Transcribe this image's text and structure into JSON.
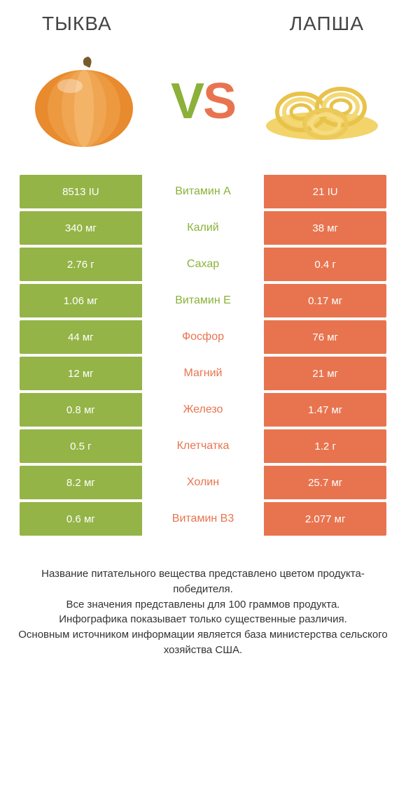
{
  "titles": {
    "left": "ТЫКВА",
    "right": "ЛАПША"
  },
  "vs": {
    "v": "V",
    "s": "S"
  },
  "colors": {
    "green": "#94b447",
    "orange": "#e8744f",
    "green_text": "#8bb13a",
    "orange_text": "#e8744f",
    "row_bg_white": "#ffffff"
  },
  "comparison": {
    "type": "table",
    "rows": [
      {
        "label": "Витамин A",
        "left": "8513 IU",
        "right": "21 IU",
        "winner": "left"
      },
      {
        "label": "Калий",
        "left": "340 мг",
        "right": "38 мг",
        "winner": "left"
      },
      {
        "label": "Сахар",
        "left": "2.76 г",
        "right": "0.4 г",
        "winner": "left"
      },
      {
        "label": "Витамин E",
        "left": "1.06 мг",
        "right": "0.17 мг",
        "winner": "left"
      },
      {
        "label": "Фосфор",
        "left": "44 мг",
        "right": "76 мг",
        "winner": "right"
      },
      {
        "label": "Магний",
        "left": "12 мг",
        "right": "21 мг",
        "winner": "right"
      },
      {
        "label": "Железо",
        "left": "0.8 мг",
        "right": "1.47 мг",
        "winner": "right"
      },
      {
        "label": "Клетчатка",
        "left": "0.5 г",
        "right": "1.2 г",
        "winner": "right"
      },
      {
        "label": "Холин",
        "left": "8.2 мг",
        "right": "25.7 мг",
        "winner": "right"
      },
      {
        "label": "Витамин B3",
        "left": "0.6 мг",
        "right": "2.077 мг",
        "winner": "right"
      }
    ]
  },
  "footer_lines": [
    "Название питательного вещества представлено цветом продукта-победителя.",
    "Все значения представлены для 100 граммов продукта.",
    "Инфографика показывает только существенные различия.",
    "Основным источником информации является база министерства сельского хозяйства США."
  ]
}
